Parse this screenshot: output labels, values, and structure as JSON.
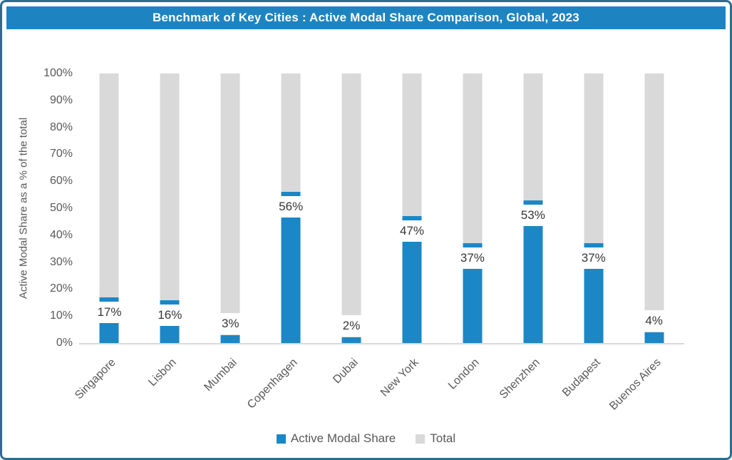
{
  "title": "Benchmark of Key Cities : Active Modal Share Comparison, Global, 2023",
  "chart_data": {
    "type": "bar",
    "subtype": "stacked-column",
    "categories": [
      "Singapore",
      "Lisbon",
      "Mumbai",
      "Copenhagen",
      "Dubai",
      "New York",
      "London",
      "Shenzhen",
      "Budapest",
      "Buenos Aires"
    ],
    "series": [
      {
        "name": "Active Modal Share",
        "color": "#1B87C6",
        "values": [
          17,
          16,
          3,
          56,
          2,
          47,
          37,
          53,
          37,
          4
        ]
      },
      {
        "name": "Total",
        "color": "#D9D9D9",
        "values": [
          100,
          100,
          100,
          100,
          100,
          100,
          100,
          100,
          100,
          100
        ],
        "render_note": "gray segment drawn from active value up to total"
      }
    ],
    "data_labels": [
      "17%",
      "16%",
      "3%",
      "56%",
      "2%",
      "47%",
      "37%",
      "53%",
      "37%",
      "4%"
    ],
    "title": "Benchmark of Key Cities : Active Modal Share Comparison, Global, 2023",
    "xlabel": "",
    "ylabel": "Active Modal Share as a % of the total",
    "ylim": [
      0,
      100
    ],
    "ytick_step": 10,
    "yticks": [
      "0%",
      "10%",
      "20%",
      "30%",
      "40%",
      "50%",
      "60%",
      "70%",
      "80%",
      "90%",
      "100%"
    ],
    "grid": false,
    "legend": [
      "Active Modal Share",
      "Total"
    ],
    "legend_position": "bottom"
  },
  "colors": {
    "accent_blue": "#1B87C6",
    "title_bar_bg": "#1E84C1",
    "title_text": "#FFFFFF",
    "bar_gray": "#D9D9D9",
    "axis_text": "#595959",
    "data_label_text": "#363636",
    "card_border": "#2B6D92",
    "axis_line": "#D9D9D9"
  }
}
